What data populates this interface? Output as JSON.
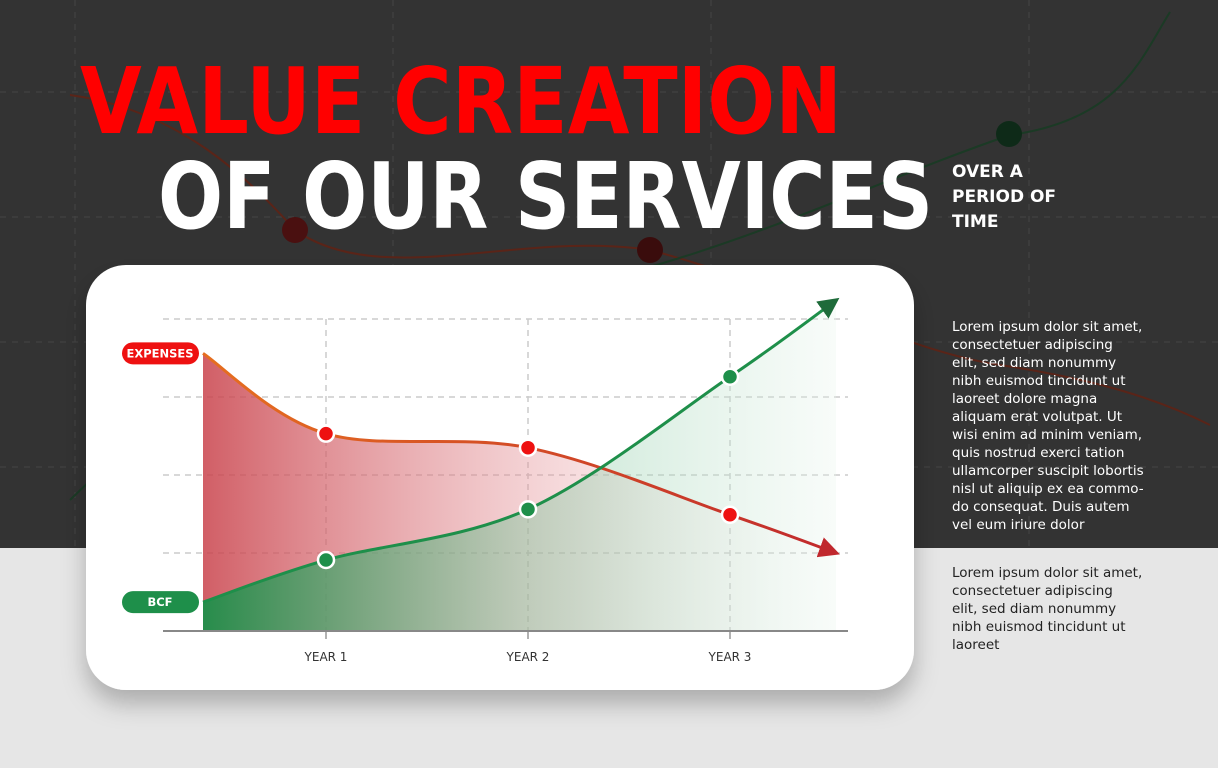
{
  "title": {
    "line1": "VALUE CREATION",
    "line2": "OF OUR SERVICES",
    "side": [
      "OVER A",
      "PERIOD OF",
      "TIME"
    ]
  },
  "paragraphs": [
    [
      "Lorem ipsum dolor sit amet,",
      "consectetuer adipiscing",
      "elit, sed diam nonummy",
      "nibh euismod tincidunt ut",
      "laoreet dolore magna",
      "aliquam erat volutpat. Ut",
      "wisi enim ad minim veniam,",
      "quis nostrud exerci tation",
      "ullamcorper suscipit lobortis",
      "nisl ut aliquip ex ea commo-",
      "do consequat. Duis autem",
      "vel eum iriure dolor"
    ],
    [
      "Lorem ipsum dolor sit amet,",
      "consectetuer adipiscing",
      "elit, sed diam nonummy",
      "nibh euismod tincidunt ut",
      "laoreet"
    ]
  ],
  "chart_data": {
    "type": "line",
    "categories": [
      null,
      "YEAR 1",
      "YEAR 2",
      "YEAR 3",
      null
    ],
    "series": [
      {
        "name": "EXPENSES",
        "color": "#e8731e",
        "values": [
          3.56,
          2.53,
          2.35,
          1.49,
          1.0
        ]
      },
      {
        "name": "BCF",
        "color": "#1e8f4a",
        "values": [
          0.37,
          0.91,
          1.56,
          3.26,
          4.24
        ]
      }
    ],
    "ylim": [
      0,
      4
    ],
    "yticks": [
      1,
      2,
      3,
      4
    ],
    "grid": true
  }
}
